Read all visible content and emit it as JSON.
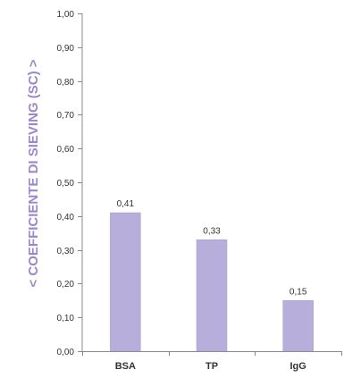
{
  "chart_data": {
    "type": "bar",
    "title": "",
    "xlabel": "",
    "ylabel": "< COEFFICIENTE DI SIEVING (SC) >",
    "categories": [
      "BSA",
      "TP",
      "IgG"
    ],
    "values": [
      0.41,
      0.33,
      0.15
    ],
    "value_labels": [
      "0,41",
      "0,33",
      "0,15"
    ],
    "ylim": [
      0,
      1
    ],
    "y_ticks": [
      0,
      0.1,
      0.2,
      0.3,
      0.4,
      0.5,
      0.6,
      0.7,
      0.8,
      0.9,
      1.0
    ],
    "y_tick_labels": [
      "0,00",
      "0,10",
      "0,20",
      "0,30",
      "0,40",
      "0,50",
      "0,60",
      "0,70",
      "0,80",
      "0,90",
      "1,00"
    ],
    "grid": false,
    "legend": "none",
    "bar_color": "#b8aedb",
    "bar_edge_color": "#a89bd0",
    "ylabel_color": "#9a88c9"
  }
}
